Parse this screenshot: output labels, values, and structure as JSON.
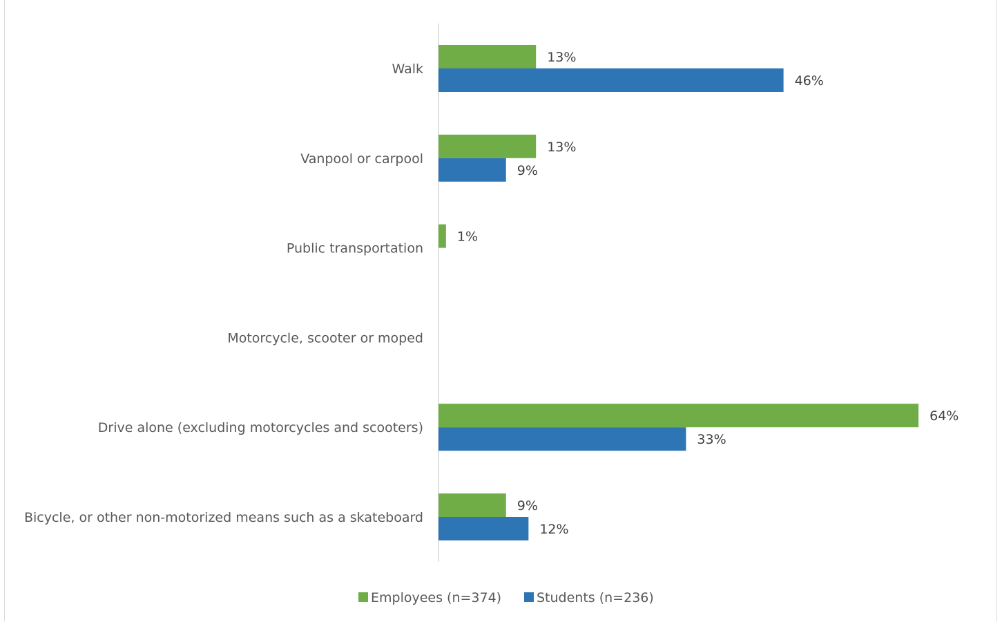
{
  "title": "",
  "chart_data": {
    "type": "bar",
    "orientation": "horizontal",
    "title": "",
    "xlabel": "",
    "ylabel": "",
    "categories": [
      "Walk",
      "Vanpool or carpool",
      "Public transportation",
      "Motorcycle, scooter or moped",
      "Drive alone  (excluding motorcycles and scooters)",
      "Bicycle, or other non-motorized means such as a skateboard"
    ],
    "series": [
      {
        "name": "Employees (n=374)",
        "color": "#70ad47",
        "values": [
          13,
          13,
          1,
          null,
          64,
          9
        ],
        "labels": [
          "13%",
          "13%",
          "1%",
          "",
          "64%",
          "9%"
        ]
      },
      {
        "name": "Students (n=236)",
        "color": "#2e75b6",
        "values": [
          46,
          9,
          null,
          null,
          33,
          12
        ],
        "labels": [
          "46%",
          "9%",
          "",
          "",
          "33%",
          "12%"
        ]
      }
    ],
    "xlim": [
      0,
      72
    ],
    "grid": false,
    "legend_position": "bottom"
  }
}
